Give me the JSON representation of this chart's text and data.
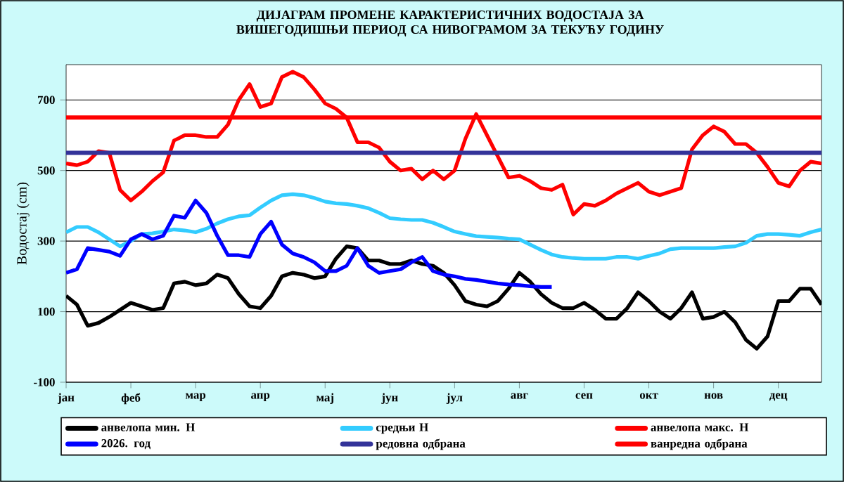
{
  "chart_data": {
    "type": "line",
    "title": "ДИЈАГРАМ ПРОМЕНЕ КАРАКТЕРИСТИЧНИХ ВОДОСТАЈА ЗА ВИШЕГОДИШЊИ ПЕРИОД СА НИВОГРАМОМ ЗА ТЕКУЋУ ГОДИНУ",
    "ylabel": "Водостај (cm)",
    "categories": [
      "јан",
      null,
      null,
      null,
      null,
      null,
      "феб",
      null,
      null,
      null,
      null,
      null,
      "мар",
      null,
      null,
      null,
      null,
      null,
      "апр",
      null,
      null,
      null,
      null,
      null,
      "мај",
      null,
      null,
      null,
      null,
      null,
      "јун",
      null,
      null,
      null,
      null,
      null,
      "јул",
      null,
      null,
      null,
      null,
      null,
      "авг",
      null,
      null,
      null,
      null,
      null,
      "сеп",
      null,
      null,
      null,
      null,
      null,
      "окт",
      null,
      null,
      null,
      null,
      null,
      "нов",
      null,
      null,
      null,
      null,
      null,
      "дец",
      null,
      null,
      null,
      null
    ],
    "ylim": [
      -100,
      800
    ],
    "yticks": [
      -100,
      100,
      300,
      500,
      700
    ],
    "grid": "y",
    "legend": "bottom",
    "marker": "none",
    "line_style": "solid",
    "series": [
      {
        "name": "анвелопа мин. H",
        "color": "#000000",
        "values": [
          145,
          120,
          60,
          68,
          85,
          105,
          125,
          115,
          105,
          110,
          180,
          185,
          175,
          180,
          205,
          195,
          150,
          115,
          110,
          145,
          200,
          210,
          205,
          195,
          200,
          250,
          285,
          280,
          245,
          245,
          235,
          235,
          245,
          235,
          230,
          210,
          175,
          130,
          120,
          115,
          130,
          165,
          210,
          185,
          150,
          125,
          110,
          110,
          125,
          105,
          80,
          80,
          110,
          155,
          130,
          100,
          80,
          110,
          155,
          80,
          85,
          100,
          70,
          20,
          -5,
          30,
          130,
          130,
          165,
          165,
          120
        ]
      },
      {
        "name": "средњи H",
        "color": "#33ccff",
        "values": [
          325,
          340,
          340,
          325,
          305,
          285,
          300,
          320,
          322,
          327,
          333,
          330,
          325,
          335,
          350,
          362,
          370,
          373,
          395,
          415,
          430,
          433,
          430,
          422,
          412,
          407,
          405,
          400,
          393,
          380,
          365,
          362,
          360,
          360,
          352,
          340,
          327,
          320,
          314,
          312,
          310,
          307,
          305,
          290,
          275,
          262,
          255,
          252,
          250,
          250,
          250,
          255,
          255,
          250,
          258,
          265,
          277,
          280,
          280,
          280,
          280,
          283,
          285,
          295,
          315,
          320,
          320,
          318,
          315,
          325,
          333
        ]
      },
      {
        "name": "анвелопа макс. H",
        "color": "#ff0000",
        "values": [
          520,
          515,
          525,
          555,
          550,
          445,
          415,
          440,
          470,
          495,
          585,
          600,
          600,
          595,
          595,
          630,
          700,
          745,
          680,
          690,
          765,
          780,
          765,
          730,
          690,
          675,
          650,
          580,
          580,
          565,
          525,
          500,
          505,
          475,
          500,
          475,
          500,
          590,
          660,
          600,
          540,
          480,
          485,
          470,
          450,
          445,
          460,
          375,
          405,
          400,
          415,
          435,
          450,
          465,
          440,
          430,
          440,
          450,
          560,
          600,
          625,
          610,
          575,
          575,
          550,
          510,
          465,
          455,
          500,
          525,
          520
        ]
      },
      {
        "name": "2026. год",
        "color": "#0000ff",
        "values": [
          210,
          220,
          280,
          275,
          270,
          258,
          305,
          320,
          305,
          315,
          372,
          366,
          415,
          380,
          315,
          260,
          260,
          255,
          320,
          355,
          290,
          265,
          255,
          240,
          215,
          215,
          230,
          280,
          230,
          210,
          215,
          220,
          240,
          255,
          215,
          205,
          200,
          193,
          190,
          185,
          180,
          177,
          175,
          172,
          170,
          170,
          null,
          null,
          null,
          null,
          null,
          null,
          null,
          null,
          null,
          null,
          null,
          null,
          null,
          null,
          null,
          null,
          null,
          null,
          null,
          null,
          null,
          null,
          null,
          null,
          null
        ]
      }
    ],
    "ref_lines": [
      {
        "axis": "y",
        "value": 550,
        "label": "редовна одбрана",
        "color": "#333399"
      },
      {
        "axis": "y",
        "value": 650,
        "label": "ванредна одбрана",
        "color": "#ff0000"
      }
    ]
  }
}
